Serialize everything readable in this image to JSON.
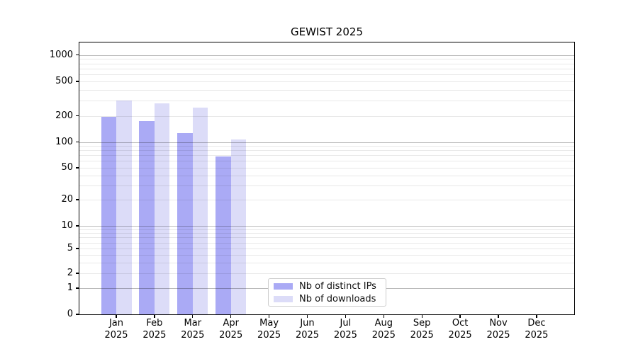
{
  "chart_data": {
    "type": "bar",
    "title": "GEWIST 2025",
    "x_axis": {
      "categories": [
        "Jan",
        "Feb",
        "Mar",
        "Apr",
        "May",
        "Jun",
        "Jul",
        "Aug",
        "Sep",
        "Oct",
        "Nov",
        "Dec"
      ],
      "year": "2025"
    },
    "y_axis": {
      "scale": "symlog",
      "ticks": [
        0,
        1,
        2,
        5,
        10,
        20,
        50,
        100,
        200,
        500,
        1000
      ],
      "major_ticks": [
        1,
        10,
        100,
        1000
      ],
      "range": [
        0,
        1365
      ]
    },
    "series": [
      {
        "name": "Nb of distinct IPs",
        "color": "#aaaaf5",
        "values": [
          195,
          175,
          126,
          68,
          0,
          0,
          0,
          0,
          0,
          0,
          0,
          0
        ]
      },
      {
        "name": "Nb of downloads",
        "color": "#dcdcf8",
        "values": [
          298,
          281,
          248,
          106,
          0,
          0,
          0,
          0,
          0,
          0,
          0,
          0
        ]
      }
    ],
    "legend": {
      "entries": [
        "Nb of distinct IPs",
        "Nb of downloads"
      ],
      "position": "lower-center-inside"
    },
    "grid": {
      "horizontal": true,
      "vertical": false,
      "minor": true
    }
  }
}
